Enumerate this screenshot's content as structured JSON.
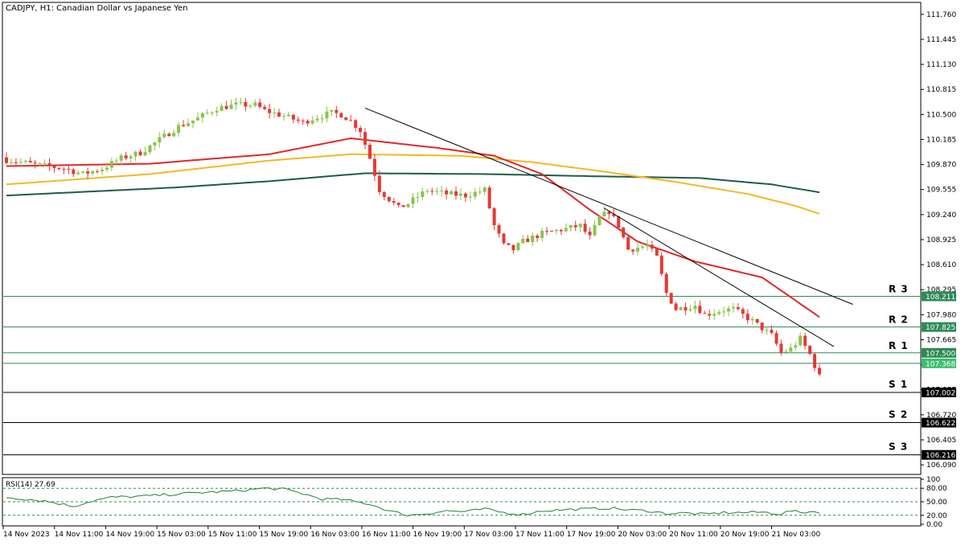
{
  "header": {
    "title": "CADJPY, H1:  Canadian Dollar vs Japanese Yen"
  },
  "colors": {
    "bull": "#8BC34A",
    "bear": "#E53935",
    "ma_fast": "#E02828",
    "ma_mid": "#F5B823",
    "ma_slow": "#1F5C4B",
    "level_line": "#2E8B57",
    "support_line": "#000000",
    "rsi_line": "#1E7F3A",
    "grid": "#2E8B57",
    "trend": "#000000"
  },
  "chart_data": {
    "type": "candlestick",
    "symbol": "CADJPY",
    "timeframe": "H1",
    "ylim": [
      105.98,
      111.9
    ],
    "y_ticks": [
      "111.760",
      "111.445",
      "111.130",
      "110.815",
      "110.500",
      "110.185",
      "109.870",
      "109.555",
      "109.240",
      "108.925",
      "108.610",
      "108.295",
      "107.980",
      "107.665",
      "107.350",
      "107.035",
      "106.720",
      "106.405",
      "106.090"
    ],
    "x_labels": [
      "14 Nov 2023",
      "14 Nov 11:00",
      "14 Nov 19:00",
      "15 Nov 03:00",
      "15 Nov 11:00",
      "15 Nov 19:00",
      "16 Nov 03:00",
      "16 Nov 11:00",
      "16 Nov 19:00",
      "17 Nov 03:00",
      "17 Nov 11:00",
      "17 Nov 19:00",
      "20 Nov 03:00",
      "20 Nov 11:00",
      "20 Nov 19:00",
      "21 Nov 03:00"
    ],
    "levels": [
      {
        "name": "R 3",
        "value": 108.211,
        "label": "108.211",
        "kind": "resistance"
      },
      {
        "name": "R 2",
        "value": 107.825,
        "label": "107.825",
        "kind": "resistance"
      },
      {
        "name": "R 1",
        "value": 107.5,
        "label": "107.500",
        "kind": "resistance"
      },
      {
        "name": "",
        "value": 107.368,
        "label": "107.368",
        "kind": "current"
      },
      {
        "name": "S 1",
        "value": 107.002,
        "label": "107.002",
        "kind": "support"
      },
      {
        "name": "S 2",
        "value": 106.622,
        "label": "106.622",
        "kind": "support"
      },
      {
        "name": "S 3",
        "value": 106.216,
        "label": "106.216",
        "kind": "support"
      }
    ],
    "price_path": [
      [
        0,
        109.93
      ],
      [
        6,
        109.87
      ],
      [
        12,
        109.82
      ],
      [
        16,
        109.75
      ],
      [
        20,
        109.82
      ],
      [
        24,
        109.95
      ],
      [
        28,
        110.02
      ],
      [
        30,
        110.1
      ],
      [
        36,
        110.35
      ],
      [
        40,
        110.45
      ],
      [
        44,
        110.58
      ],
      [
        48,
        110.62
      ],
      [
        52,
        110.62
      ],
      [
        54,
        110.55
      ],
      [
        58,
        110.48
      ],
      [
        62,
        110.4
      ],
      [
        64,
        110.45
      ],
      [
        68,
        110.52
      ],
      [
        70,
        110.5
      ],
      [
        72,
        110.42
      ],
      [
        74,
        110.3
      ],
      [
        76,
        109.95
      ],
      [
        78,
        109.55
      ],
      [
        82,
        109.32
      ],
      [
        84,
        109.38
      ],
      [
        88,
        109.55
      ],
      [
        92,
        109.5
      ],
      [
        96,
        109.48
      ],
      [
        100,
        109.55
      ],
      [
        102,
        109.1
      ],
      [
        104,
        108.85
      ],
      [
        106,
        108.8
      ],
      [
        108,
        108.9
      ],
      [
        112,
        109.0
      ],
      [
        116,
        109.05
      ],
      [
        120,
        109.1
      ],
      [
        122,
        108.95
      ],
      [
        124,
        109.2
      ],
      [
        126,
        109.28
      ],
      [
        128,
        109.1
      ],
      [
        130,
        108.8
      ],
      [
        134,
        108.85
      ],
      [
        136,
        108.7
      ],
      [
        138,
        108.25
      ],
      [
        140,
        108.05
      ],
      [
        144,
        108.1
      ],
      [
        146,
        107.98
      ],
      [
        150,
        108.04
      ],
      [
        152,
        108.05
      ],
      [
        156,
        107.9
      ],
      [
        160,
        107.72
      ],
      [
        162,
        107.5
      ],
      [
        164,
        107.55
      ],
      [
        166,
        107.68
      ],
      [
        168,
        107.48
      ],
      [
        170,
        107.2
      ]
    ],
    "bar_count": 171,
    "ma_fast": [
      [
        0,
        109.85
      ],
      [
        30,
        109.88
      ],
      [
        55,
        110.0
      ],
      [
        72,
        110.2
      ],
      [
        90,
        110.08
      ],
      [
        102,
        109.98
      ],
      [
        112,
        109.75
      ],
      [
        122,
        109.3
      ],
      [
        132,
        108.9
      ],
      [
        144,
        108.65
      ],
      [
        158,
        108.45
      ],
      [
        170,
        107.95
      ]
    ],
    "ma_mid": [
      [
        0,
        109.62
      ],
      [
        30,
        109.75
      ],
      [
        55,
        109.92
      ],
      [
        72,
        110.0
      ],
      [
        95,
        109.98
      ],
      [
        110,
        109.9
      ],
      [
        125,
        109.78
      ],
      [
        140,
        109.65
      ],
      [
        155,
        109.5
      ],
      [
        165,
        109.35
      ],
      [
        170,
        109.25
      ]
    ],
    "ma_slow": [
      [
        0,
        109.48
      ],
      [
        35,
        109.58
      ],
      [
        55,
        109.66
      ],
      [
        75,
        109.76
      ],
      [
        100,
        109.75
      ],
      [
        125,
        109.72
      ],
      [
        145,
        109.7
      ],
      [
        160,
        109.62
      ],
      [
        170,
        109.52
      ]
    ],
    "trendlines": [
      {
        "x1": 75,
        "y1": 110.58,
        "x2": 177,
        "y2": 108.11
      },
      {
        "x1": 125,
        "y1": 109.32,
        "x2": 173,
        "y2": 107.58
      }
    ],
    "rsi": {
      "label": "RSI(14) 27.69",
      "period": 14,
      "value": 27.69,
      "ylim": [
        0,
        100
      ],
      "ticks": [
        "100",
        "80.00",
        "50.00",
        "20.00",
        "0.00"
      ],
      "levels": [
        80,
        50,
        20
      ],
      "path": [
        [
          0,
          60
        ],
        [
          8,
          52
        ],
        [
          14,
          40
        ],
        [
          18,
          52
        ],
        [
          22,
          60
        ],
        [
          28,
          62
        ],
        [
          34,
          66
        ],
        [
          40,
          70
        ],
        [
          48,
          74
        ],
        [
          54,
          80
        ],
        [
          58,
          78
        ],
        [
          62,
          68
        ],
        [
          66,
          56
        ],
        [
          70,
          55
        ],
        [
          76,
          45
        ],
        [
          80,
          30
        ],
        [
          84,
          20
        ],
        [
          88,
          24
        ],
        [
          92,
          30
        ],
        [
          96,
          28
        ],
        [
          100,
          34
        ],
        [
          104,
          26
        ],
        [
          108,
          22
        ],
        [
          112,
          30
        ],
        [
          118,
          33
        ],
        [
          122,
          34
        ],
        [
          126,
          36
        ],
        [
          130,
          32
        ],
        [
          134,
          30
        ],
        [
          138,
          24
        ],
        [
          142,
          25
        ],
        [
          146,
          22
        ],
        [
          150,
          26
        ],
        [
          154,
          26
        ],
        [
          158,
          27
        ],
        [
          162,
          23
        ],
        [
          164,
          30
        ],
        [
          166,
          26
        ],
        [
          168,
          28
        ],
        [
          170,
          27.69
        ]
      ]
    }
  }
}
